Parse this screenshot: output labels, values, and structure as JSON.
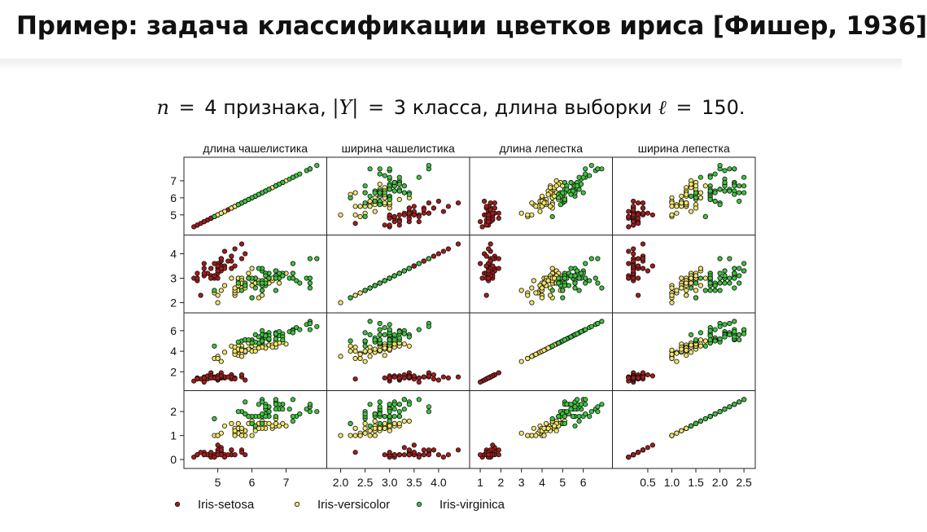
{
  "slide": {
    "title": "Пример: задача классификации цветков ириса [Фишер, 1936]",
    "subtitle": {
      "n_var": "n",
      "eq1": "=",
      "n_value": "4",
      "features_word": "признака,",
      "y_var": "|Y|",
      "eq2": "=",
      "y_value": "3",
      "classes_word": "класса,",
      "sample_phrase": "длина выборки",
      "l_var": "ℓ",
      "eq3": "=",
      "l_value": "150."
    }
  },
  "chart_data": {
    "type": "scatter",
    "title": "",
    "variables": [
      "длина чашелистика",
      "ширина чашелистика",
      "длина лепестка",
      "ширина лепестка"
    ],
    "axes": [
      {
        "range": [
          4.2,
          8.0
        ],
        "ticks": [
          "5",
          "6",
          "7"
        ],
        "tick_values": [
          5,
          6,
          7
        ]
      },
      {
        "range": [
          1.85,
          4.5
        ],
        "ticks": [
          "2",
          "3",
          "4"
        ],
        "tick_values": [
          2,
          3,
          4
        ]
      },
      {
        "range": [
          0.8,
          7.1
        ],
        "ticks": [
          "2",
          "4",
          "6"
        ],
        "tick_values": [
          2,
          4,
          6
        ]
      },
      {
        "range": [
          -0.1,
          2.6
        ],
        "ticks": [
          "0",
          "1",
          "2"
        ],
        "tick_values": [
          0,
          1,
          2
        ]
      }
    ],
    "bottom_ticks": [
      {
        "labels": [
          "5",
          "6",
          "7"
        ],
        "values": [
          5,
          6,
          7
        ]
      },
      {
        "labels": [
          "2.0",
          "2.5",
          "3.0",
          "3.5",
          "4.0"
        ],
        "values": [
          2.0,
          2.5,
          3.0,
          3.5,
          4.0
        ]
      },
      {
        "labels": [
          "1",
          "2",
          "3",
          "4",
          "5",
          "6"
        ],
        "values": [
          1,
          2,
          3,
          4,
          5,
          6
        ]
      },
      {
        "labels": [
          "0.5",
          "1.0",
          "1.5",
          "2.0",
          "2.5"
        ],
        "values": [
          0.5,
          1.0,
          1.5,
          2.0,
          2.5
        ]
      }
    ],
    "left_ticks": [
      {
        "labels": [
          "5",
          "6",
          "7"
        ],
        "values": [
          5,
          6,
          7
        ]
      },
      {
        "labels": [
          "2",
          "3",
          "4"
        ],
        "values": [
          2,
          3,
          4
        ]
      },
      {
        "labels": [
          "2",
          "4",
          "6"
        ],
        "values": [
          2,
          4,
          6
        ]
      },
      {
        "labels": [
          "0",
          "1",
          "2"
        ],
        "values": [
          0,
          1,
          2
        ]
      }
    ],
    "legend_position": "bottom",
    "grid": false,
    "series": [
      {
        "name": "Iris-setosa",
        "color": "#a51b1b",
        "points": [
          [
            5.1,
            3.5,
            1.4,
            0.2
          ],
          [
            4.9,
            3.0,
            1.4,
            0.2
          ],
          [
            4.7,
            3.2,
            1.3,
            0.2
          ],
          [
            4.6,
            3.1,
            1.5,
            0.2
          ],
          [
            5.0,
            3.6,
            1.4,
            0.2
          ],
          [
            5.4,
            3.9,
            1.7,
            0.4
          ],
          [
            4.6,
            3.4,
            1.4,
            0.3
          ],
          [
            5.0,
            3.4,
            1.5,
            0.2
          ],
          [
            4.4,
            2.9,
            1.4,
            0.2
          ],
          [
            4.9,
            3.1,
            1.5,
            0.1
          ],
          [
            5.4,
            3.7,
            1.5,
            0.2
          ],
          [
            4.8,
            3.4,
            1.6,
            0.2
          ],
          [
            4.8,
            3.0,
            1.4,
            0.1
          ],
          [
            4.3,
            3.0,
            1.1,
            0.1
          ],
          [
            5.8,
            4.0,
            1.2,
            0.2
          ],
          [
            5.7,
            4.4,
            1.5,
            0.4
          ],
          [
            5.4,
            3.9,
            1.3,
            0.4
          ],
          [
            5.1,
            3.5,
            1.4,
            0.3
          ],
          [
            5.7,
            3.8,
            1.7,
            0.3
          ],
          [
            5.1,
            3.8,
            1.5,
            0.3
          ],
          [
            5.4,
            3.4,
            1.7,
            0.2
          ],
          [
            5.1,
            3.7,
            1.5,
            0.4
          ],
          [
            4.6,
            3.6,
            1.0,
            0.2
          ],
          [
            5.1,
            3.3,
            1.7,
            0.5
          ],
          [
            4.8,
            3.4,
            1.9,
            0.2
          ],
          [
            5.0,
            3.0,
            1.6,
            0.2
          ],
          [
            5.0,
            3.4,
            1.6,
            0.4
          ],
          [
            5.2,
            3.5,
            1.5,
            0.2
          ],
          [
            5.2,
            3.4,
            1.4,
            0.2
          ],
          [
            4.7,
            3.2,
            1.6,
            0.2
          ],
          [
            4.8,
            3.1,
            1.6,
            0.2
          ],
          [
            5.4,
            3.4,
            1.5,
            0.4
          ],
          [
            5.2,
            4.1,
            1.5,
            0.1
          ],
          [
            5.5,
            4.2,
            1.4,
            0.2
          ],
          [
            4.9,
            3.1,
            1.5,
            0.2
          ],
          [
            5.0,
            3.2,
            1.2,
            0.2
          ],
          [
            5.5,
            3.5,
            1.3,
            0.2
          ],
          [
            4.9,
            3.6,
            1.4,
            0.1
          ],
          [
            4.4,
            3.0,
            1.3,
            0.2
          ],
          [
            5.1,
            3.4,
            1.5,
            0.2
          ],
          [
            5.0,
            3.5,
            1.3,
            0.3
          ],
          [
            4.5,
            2.3,
            1.3,
            0.3
          ],
          [
            4.4,
            3.2,
            1.3,
            0.2
          ],
          [
            5.0,
            3.5,
            1.6,
            0.6
          ],
          [
            5.1,
            3.8,
            1.9,
            0.4
          ],
          [
            4.8,
            3.0,
            1.4,
            0.3
          ],
          [
            5.1,
            3.8,
            1.6,
            0.2
          ],
          [
            4.6,
            3.2,
            1.4,
            0.2
          ],
          [
            5.3,
            3.7,
            1.5,
            0.2
          ],
          [
            5.0,
            3.3,
            1.4,
            0.2
          ]
        ]
      },
      {
        "name": "Iris-versicolor",
        "color": "#f3e66a",
        "points": [
          [
            7.0,
            3.2,
            4.7,
            1.4
          ],
          [
            6.4,
            3.2,
            4.5,
            1.5
          ],
          [
            6.9,
            3.1,
            4.9,
            1.5
          ],
          [
            5.5,
            2.3,
            4.0,
            1.3
          ],
          [
            6.5,
            2.8,
            4.6,
            1.5
          ],
          [
            5.7,
            2.8,
            4.5,
            1.3
          ],
          [
            6.3,
            3.3,
            4.7,
            1.6
          ],
          [
            4.9,
            2.4,
            3.3,
            1.0
          ],
          [
            6.6,
            2.9,
            4.6,
            1.3
          ],
          [
            5.2,
            2.7,
            3.9,
            1.4
          ],
          [
            5.0,
            2.0,
            3.5,
            1.0
          ],
          [
            5.9,
            3.0,
            4.2,
            1.5
          ],
          [
            6.0,
            2.2,
            4.0,
            1.0
          ],
          [
            6.1,
            2.9,
            4.7,
            1.4
          ],
          [
            5.6,
            2.9,
            3.6,
            1.3
          ],
          [
            6.7,
            3.1,
            4.4,
            1.4
          ],
          [
            5.6,
            3.0,
            4.5,
            1.5
          ],
          [
            5.8,
            2.7,
            4.1,
            1.0
          ],
          [
            6.2,
            2.2,
            4.5,
            1.5
          ],
          [
            5.6,
            2.5,
            3.9,
            1.1
          ],
          [
            5.9,
            3.2,
            4.8,
            1.8
          ],
          [
            6.1,
            2.8,
            4.0,
            1.3
          ],
          [
            6.3,
            2.5,
            4.9,
            1.5
          ],
          [
            6.1,
            2.8,
            4.7,
            1.2
          ],
          [
            6.4,
            2.9,
            4.3,
            1.3
          ],
          [
            6.6,
            3.0,
            4.4,
            1.4
          ],
          [
            6.8,
            2.8,
            4.8,
            1.4
          ],
          [
            6.7,
            3.0,
            5.0,
            1.7
          ],
          [
            6.0,
            2.9,
            4.5,
            1.5
          ],
          [
            5.7,
            2.6,
            3.5,
            1.0
          ],
          [
            5.5,
            2.4,
            3.8,
            1.1
          ],
          [
            5.5,
            2.4,
            3.7,
            1.0
          ],
          [
            5.8,
            2.7,
            3.9,
            1.2
          ],
          [
            6.0,
            2.7,
            5.1,
            1.6
          ],
          [
            5.4,
            3.0,
            4.5,
            1.5
          ],
          [
            6.0,
            3.4,
            4.5,
            1.6
          ],
          [
            6.7,
            3.1,
            4.7,
            1.5
          ],
          [
            6.3,
            2.3,
            4.4,
            1.3
          ],
          [
            5.6,
            3.0,
            4.1,
            1.3
          ],
          [
            5.5,
            2.5,
            4.0,
            1.3
          ],
          [
            5.5,
            2.6,
            4.4,
            1.2
          ],
          [
            6.1,
            3.0,
            4.6,
            1.4
          ],
          [
            5.8,
            2.6,
            4.0,
            1.2
          ],
          [
            5.0,
            2.3,
            3.3,
            1.0
          ],
          [
            5.6,
            2.7,
            4.2,
            1.3
          ],
          [
            5.7,
            3.0,
            4.2,
            1.2
          ],
          [
            5.7,
            2.9,
            4.2,
            1.3
          ],
          [
            6.2,
            2.9,
            4.3,
            1.3
          ],
          [
            5.1,
            2.5,
            3.0,
            1.1
          ],
          [
            5.7,
            2.8,
            4.1,
            1.3
          ]
        ]
      },
      {
        "name": "Iris-virginica",
        "color": "#3ec43e",
        "points": [
          [
            6.3,
            3.3,
            6.0,
            2.5
          ],
          [
            5.8,
            2.7,
            5.1,
            1.9
          ],
          [
            7.1,
            3.0,
            5.9,
            2.1
          ],
          [
            6.3,
            2.9,
            5.6,
            1.8
          ],
          [
            6.5,
            3.0,
            5.8,
            2.2
          ],
          [
            7.6,
            3.0,
            6.6,
            2.1
          ],
          [
            4.9,
            2.5,
            4.5,
            1.7
          ],
          [
            7.3,
            2.9,
            6.3,
            1.8
          ],
          [
            6.7,
            2.5,
            5.8,
            1.8
          ],
          [
            7.2,
            3.6,
            6.1,
            2.5
          ],
          [
            6.5,
            3.2,
            5.1,
            2.0
          ],
          [
            6.4,
            2.7,
            5.3,
            1.9
          ],
          [
            6.8,
            3.0,
            5.5,
            2.1
          ],
          [
            5.7,
            2.5,
            5.0,
            2.0
          ],
          [
            5.8,
            2.8,
            5.1,
            2.4
          ],
          [
            6.4,
            3.2,
            5.3,
            2.3
          ],
          [
            6.5,
            3.0,
            5.5,
            1.8
          ],
          [
            7.7,
            3.8,
            6.7,
            2.2
          ],
          [
            7.7,
            2.6,
            6.9,
            2.3
          ],
          [
            6.0,
            2.2,
            5.0,
            1.5
          ],
          [
            6.9,
            3.2,
            5.7,
            2.3
          ],
          [
            5.6,
            2.8,
            4.9,
            2.0
          ],
          [
            7.7,
            2.8,
            6.7,
            2.0
          ],
          [
            6.3,
            2.7,
            4.9,
            1.8
          ],
          [
            6.7,
            3.3,
            5.7,
            2.1
          ],
          [
            7.2,
            3.2,
            6.0,
            1.8
          ],
          [
            6.2,
            2.8,
            4.8,
            1.8
          ],
          [
            6.1,
            3.0,
            4.9,
            1.8
          ],
          [
            6.4,
            2.8,
            5.6,
            2.1
          ],
          [
            7.2,
            3.0,
            5.8,
            1.6
          ],
          [
            7.4,
            2.8,
            6.1,
            1.9
          ],
          [
            7.9,
            3.8,
            6.4,
            2.0
          ],
          [
            6.4,
            2.8,
            5.6,
            2.2
          ],
          [
            6.3,
            2.8,
            5.1,
            1.5
          ],
          [
            6.1,
            2.6,
            5.6,
            1.4
          ],
          [
            7.7,
            3.0,
            6.1,
            2.3
          ],
          [
            6.3,
            3.4,
            5.6,
            2.4
          ],
          [
            6.4,
            3.1,
            5.5,
            1.8
          ],
          [
            6.0,
            3.0,
            4.8,
            1.8
          ],
          [
            6.9,
            3.1,
            5.4,
            2.1
          ],
          [
            6.7,
            3.1,
            5.6,
            2.4
          ],
          [
            6.9,
            3.1,
            5.1,
            2.3
          ],
          [
            5.8,
            2.7,
            5.1,
            1.9
          ],
          [
            6.8,
            3.2,
            5.9,
            2.3
          ],
          [
            6.7,
            3.3,
            5.7,
            2.5
          ],
          [
            6.7,
            3.0,
            5.2,
            2.3
          ],
          [
            6.3,
            2.5,
            5.0,
            1.9
          ],
          [
            6.5,
            3.0,
            5.2,
            2.0
          ],
          [
            6.2,
            3.4,
            5.4,
            2.3
          ],
          [
            5.9,
            3.0,
            5.1,
            1.8
          ]
        ]
      }
    ]
  }
}
